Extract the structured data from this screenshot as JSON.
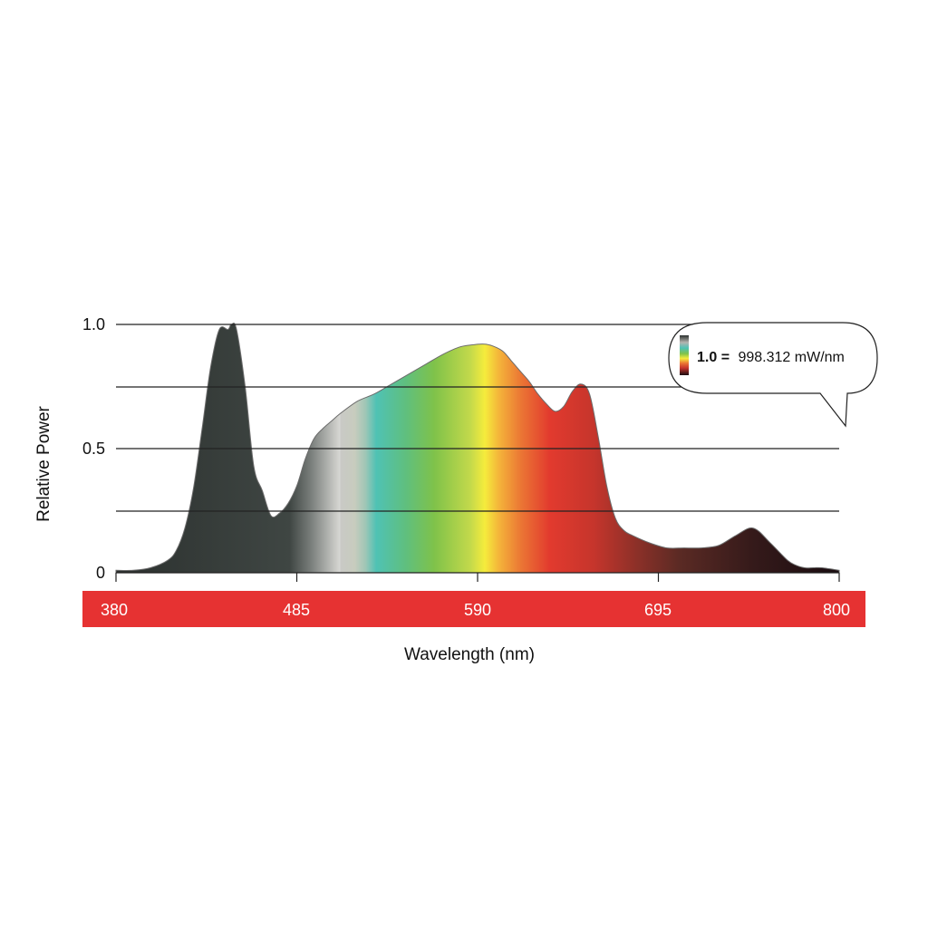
{
  "chart_data": {
    "type": "area",
    "title": "",
    "xlabel": "Wavelength (nm)",
    "ylabel": "Relative Power",
    "xlim": [
      380,
      800
    ],
    "ylim": [
      0,
      1.0
    ],
    "x_ticks": [
      "380",
      "485",
      "590",
      "695",
      "800"
    ],
    "y_ticks": [
      "0",
      "0.5",
      "1.0"
    ],
    "grid": true,
    "series": [
      {
        "x": [
          380,
          390,
          400,
          410,
          415,
          420,
          425,
          430,
          435,
          440,
          445,
          447,
          450,
          455,
          460,
          465,
          470,
          475,
          480,
          485,
          490,
          495,
          500,
          505,
          510,
          520,
          530,
          540,
          550,
          560,
          570,
          580,
          590,
          595,
          600,
          605,
          610,
          615,
          620,
          625,
          630,
          635,
          640,
          645,
          650,
          655,
          660,
          665,
          670,
          675,
          680,
          690,
          700,
          710,
          720,
          730,
          740,
          750,
          760,
          770,
          775,
          780,
          785,
          790,
          800
        ],
        "y": [
          0.01,
          0.01,
          0.02,
          0.05,
          0.09,
          0.18,
          0.34,
          0.58,
          0.83,
          0.98,
          0.98,
          1.0,
          0.98,
          0.75,
          0.43,
          0.33,
          0.23,
          0.24,
          0.28,
          0.35,
          0.46,
          0.54,
          0.58,
          0.61,
          0.64,
          0.69,
          0.72,
          0.76,
          0.8,
          0.84,
          0.88,
          0.91,
          0.92,
          0.92,
          0.91,
          0.89,
          0.85,
          0.81,
          0.77,
          0.72,
          0.68,
          0.65,
          0.67,
          0.73,
          0.76,
          0.72,
          0.55,
          0.35,
          0.22,
          0.17,
          0.15,
          0.12,
          0.1,
          0.1,
          0.1,
          0.11,
          0.15,
          0.18,
          0.12,
          0.05,
          0.03,
          0.02,
          0.02,
          0.02,
          0.01
        ]
      }
    ]
  },
  "callout": {
    "value_label": "1.0 =",
    "value_text": "998.312 mW/nm"
  },
  "colors": {
    "axis_bar": "#e63232",
    "gridline": "#222222"
  }
}
